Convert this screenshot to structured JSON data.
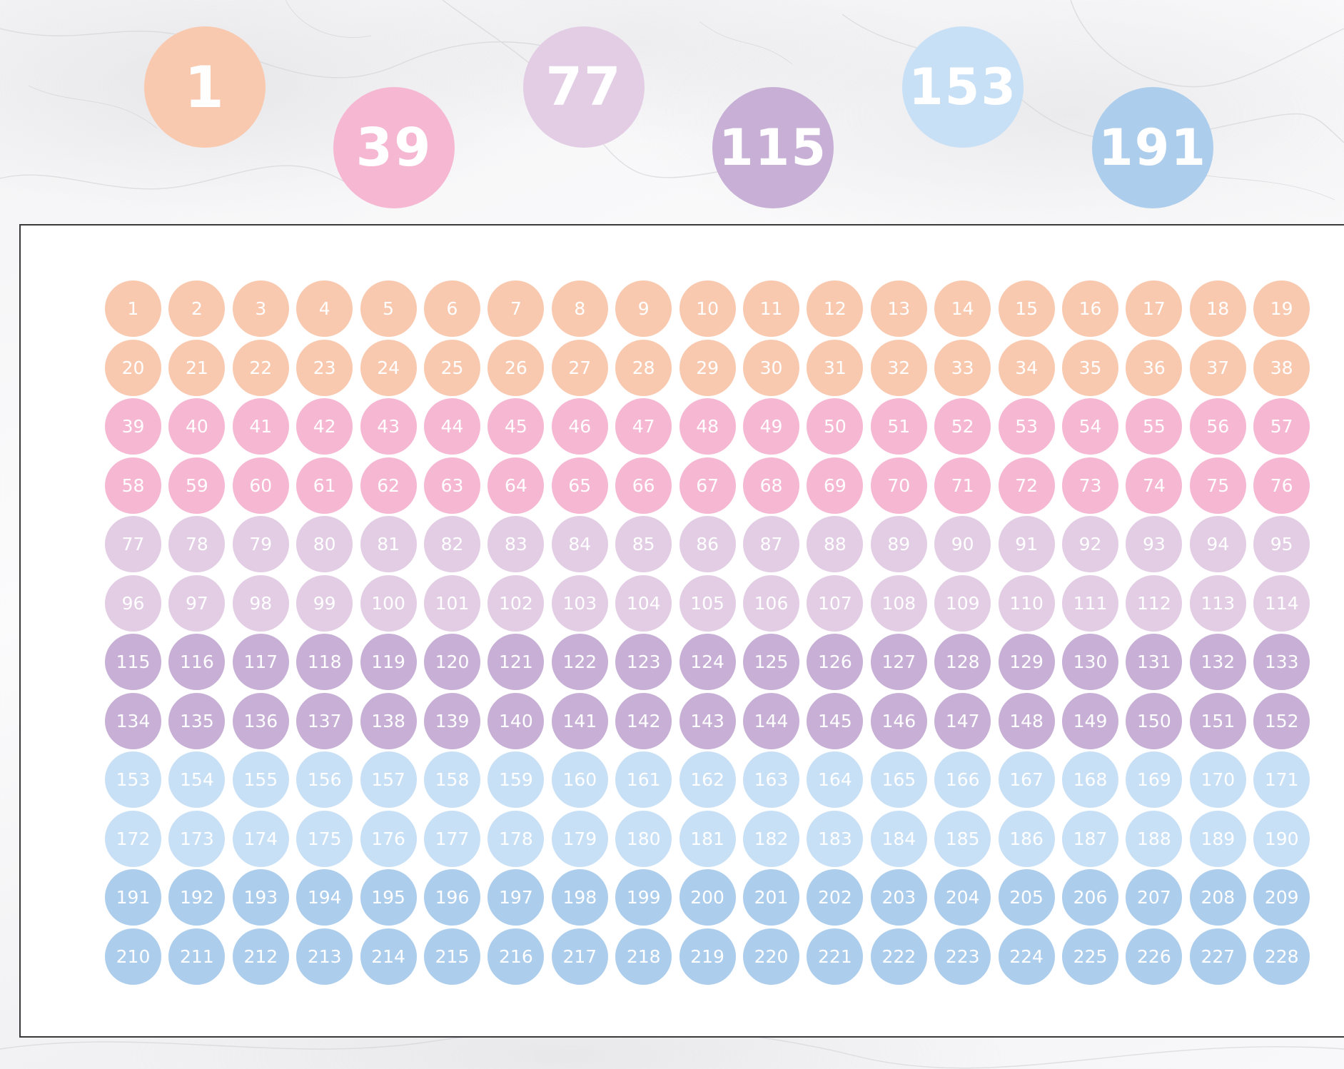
{
  "colors": {
    "peach": "#F9C9AF",
    "pink": "#F6B7D2",
    "lilac": "#E2CDE4",
    "purple": "#C7AFD6",
    "light_blue": "#C8E0F6",
    "blue": "#ACCDEC"
  },
  "featured": [
    {
      "label": "1",
      "color": "peach"
    },
    {
      "label": "39",
      "color": "pink"
    },
    {
      "label": "77",
      "color": "lilac"
    },
    {
      "label": "115",
      "color": "purple"
    },
    {
      "label": "153",
      "color": "light_blue"
    },
    {
      "label": "191",
      "color": "blue"
    }
  ],
  "sheet": {
    "columns": 19,
    "rows": [
      {
        "color": "peach",
        "labels": [
          "1",
          "2",
          "3",
          "4",
          "5",
          "6",
          "7",
          "8",
          "9",
          "10",
          "11",
          "12",
          "13",
          "14",
          "15",
          "16",
          "17",
          "18",
          "19"
        ]
      },
      {
        "color": "peach",
        "labels": [
          "20",
          "21",
          "22",
          "23",
          "24",
          "25",
          "26",
          "27",
          "28",
          "29",
          "30",
          "31",
          "32",
          "33",
          "34",
          "35",
          "36",
          "37",
          "38"
        ]
      },
      {
        "color": "pink",
        "labels": [
          "39",
          "40",
          "41",
          "42",
          "43",
          "44",
          "45",
          "46",
          "47",
          "48",
          "49",
          "50",
          "51",
          "52",
          "53",
          "54",
          "55",
          "56",
          "57"
        ]
      },
      {
        "color": "pink",
        "labels": [
          "58",
          "59",
          "60",
          "61",
          "62",
          "63",
          "64",
          "65",
          "66",
          "67",
          "68",
          "69",
          "70",
          "71",
          "72",
          "73",
          "74",
          "75",
          "76"
        ]
      },
      {
        "color": "lilac",
        "labels": [
          "77",
          "78",
          "79",
          "80",
          "81",
          "82",
          "83",
          "84",
          "85",
          "86",
          "87",
          "88",
          "89",
          "90",
          "91",
          "92",
          "93",
          "94",
          "95"
        ]
      },
      {
        "color": "lilac",
        "labels": [
          "96",
          "97",
          "98",
          "99",
          "100",
          "101",
          "102",
          "103",
          "104",
          "105",
          "106",
          "107",
          "108",
          "109",
          "110",
          "111",
          "112",
          "113",
          "114"
        ]
      },
      {
        "color": "purple",
        "labels": [
          "115",
          "116",
          "117",
          "118",
          "119",
          "120",
          "121",
          "122",
          "123",
          "124",
          "125",
          "126",
          "127",
          "128",
          "129",
          "130",
          "131",
          "132",
          "133"
        ]
      },
      {
        "color": "purple",
        "labels": [
          "134",
          "135",
          "136",
          "137",
          "138",
          "139",
          "140",
          "141",
          "142",
          "143",
          "144",
          "145",
          "146",
          "147",
          "148",
          "149",
          "150",
          "151",
          "152"
        ]
      },
      {
        "color": "light_blue",
        "labels": [
          "153",
          "154",
          "155",
          "156",
          "157",
          "158",
          "159",
          "160",
          "161",
          "162",
          "163",
          "164",
          "165",
          "166",
          "167",
          "168",
          "169",
          "170",
          "171"
        ]
      },
      {
        "color": "light_blue",
        "labels": [
          "172",
          "173",
          "174",
          "175",
          "176",
          "177",
          "178",
          "179",
          "180",
          "181",
          "182",
          "183",
          "184",
          "185",
          "186",
          "187",
          "188",
          "189",
          "190"
        ]
      },
      {
        "color": "blue",
        "labels": [
          "191",
          "192",
          "193",
          "194",
          "195",
          "196",
          "197",
          "198",
          "199",
          "200",
          "201",
          "202",
          "203",
          "204",
          "205",
          "206",
          "207",
          "208",
          "209"
        ]
      },
      {
        "color": "blue",
        "labels": [
          "210",
          "211",
          "212",
          "213",
          "214",
          "215",
          "216",
          "217",
          "218",
          "219",
          "220",
          "221",
          "222",
          "223",
          "224",
          "225",
          "226",
          "227",
          "228"
        ]
      }
    ]
  }
}
